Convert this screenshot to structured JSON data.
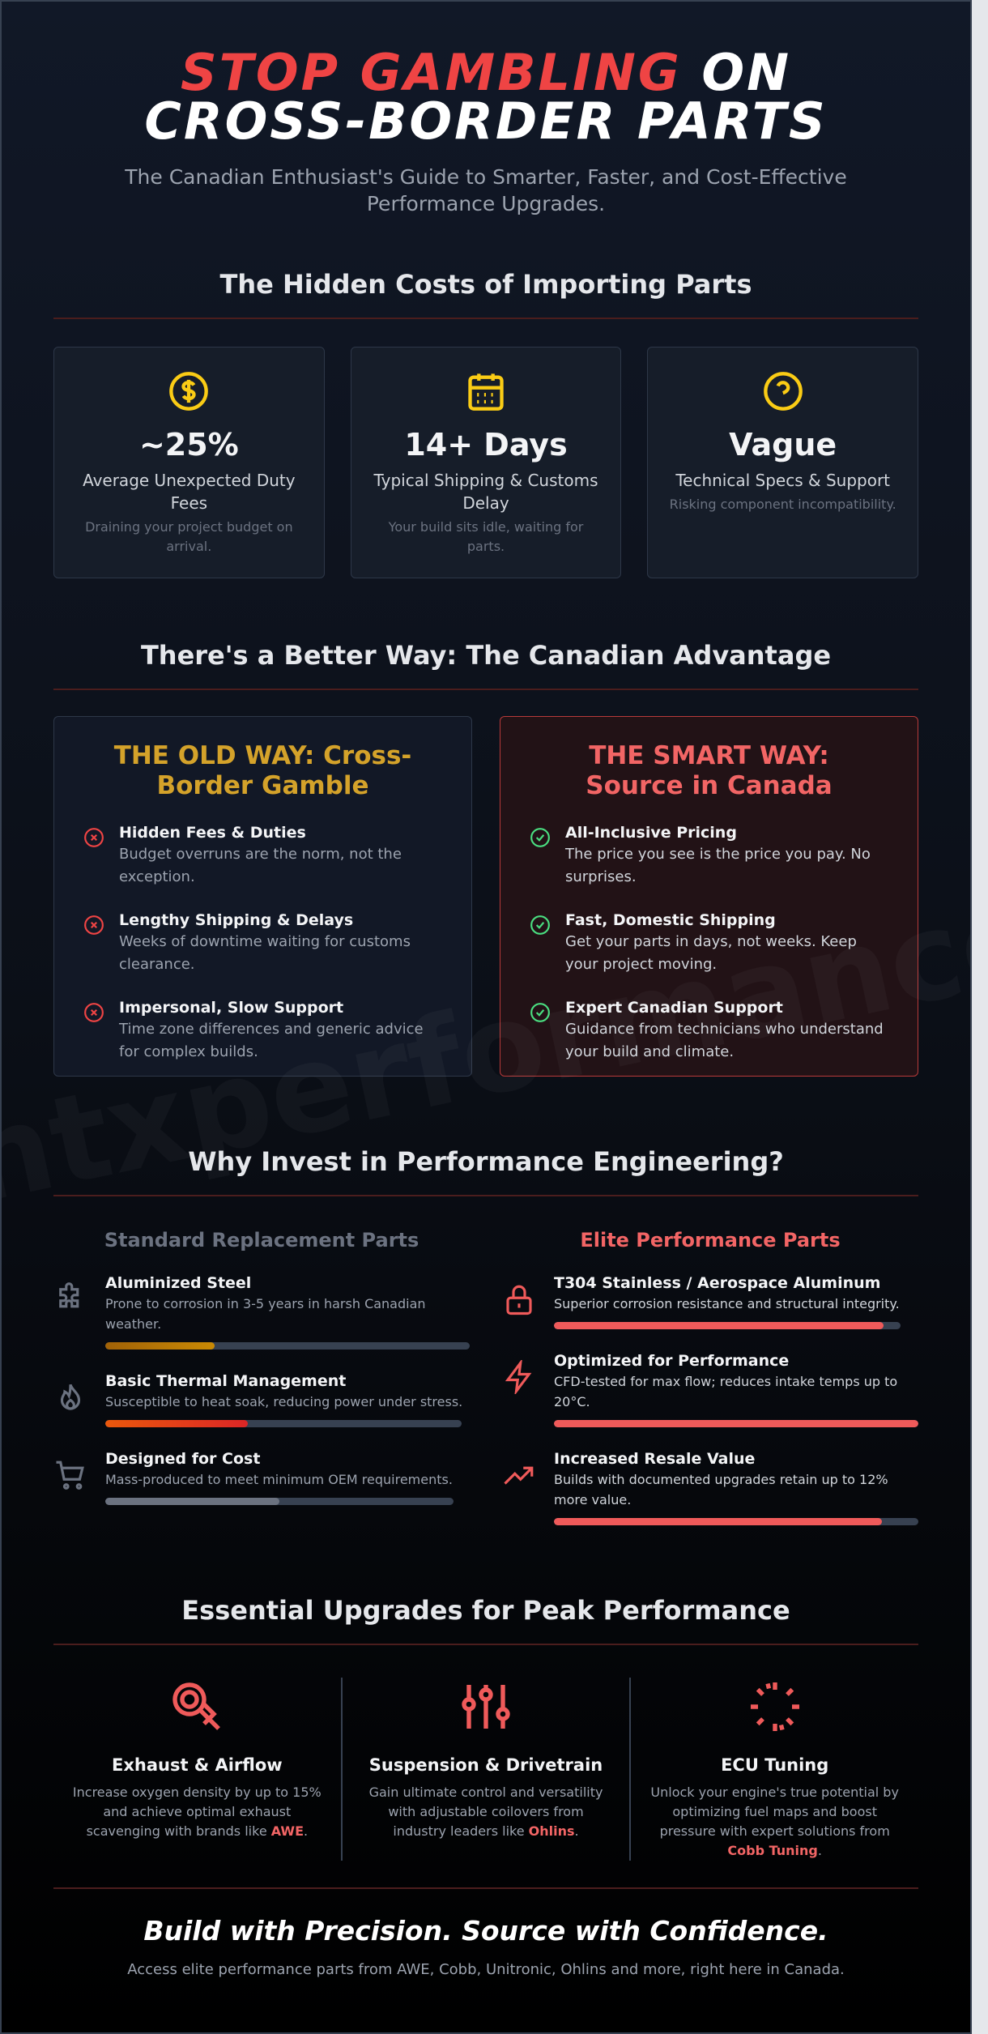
{
  "header": {
    "title_highlight": "STOP GAMBLING",
    "title_rest": "ON CROSS-BORDER PARTS",
    "subtitle": "The Canadian Enthusiast's Guide to Smarter, Faster, and Cost-Effective Performance Upgrades."
  },
  "watermark": "ntxperformance.ca",
  "hidden_costs": {
    "heading": "The Hidden Costs of Importing Parts",
    "cards": [
      {
        "stat": "~25%",
        "label": "Average Unexpected Duty Fees",
        "note": "Draining your project budget on arrival."
      },
      {
        "stat": "14+ Days",
        "label": "Typical Shipping & Customs Delay",
        "note": "Your build sits idle, waiting for parts."
      },
      {
        "stat": "Vague",
        "label": "Technical Specs & Support",
        "note": "Risking component incompatibility."
      }
    ]
  },
  "comparison": {
    "heading": "There's a Better Way: The Canadian Advantage",
    "old_way": {
      "title": "THE OLD WAY: Cross-Border Gamble",
      "items": [
        {
          "title": "Hidden Fees & Duties",
          "text": "Budget overruns are the norm, not the exception."
        },
        {
          "title": "Lengthy Shipping & Delays",
          "text": "Weeks of downtime waiting for customs clearance."
        },
        {
          "title": "Impersonal, Slow Support",
          "text": "Time zone differences and generic advice for complex builds."
        }
      ]
    },
    "smart_way": {
      "title": "THE SMART WAY: Source in Canada",
      "items": [
        {
          "title": "All-Inclusive Pricing",
          "text": "The price you see is the price you pay. No surprises."
        },
        {
          "title": "Fast, Domestic Shipping",
          "text": "Get your parts in days, not weeks. Keep your project moving."
        },
        {
          "title": "Expert Canadian Support",
          "text": "Guidance from technicians who understand your build and climate."
        }
      ]
    }
  },
  "engineering": {
    "heading": "Why Invest in Performance Engineering?",
    "standard": {
      "title": "Standard Replacement Parts",
      "items": [
        {
          "title": "Aluminized Steel",
          "text": "Prone to corrosion in 3-5 years in harsh Canadian weather.",
          "level": 30
        },
        {
          "title": "Basic Thermal Management",
          "text": "Susceptible to heat soak, reducing power under stress.",
          "level": 40
        },
        {
          "title": "Designed for Cost",
          "text": "Mass-produced to meet minimum OEM requirements.",
          "level": 50
        }
      ]
    },
    "elite": {
      "title": "Elite Performance Parts",
      "items": [
        {
          "title": "T304 Stainless / Aerospace Aluminum",
          "text": "Superior corrosion resistance and structural integrity.",
          "level": 95
        },
        {
          "title": "Optimized for Performance",
          "text": "CFD-tested for max flow; reduces intake temps up to 20°C.",
          "level": 100
        },
        {
          "title": "Increased Resale Value",
          "text": "Builds with documented upgrades retain up to 12% more value.",
          "level": 90
        }
      ]
    }
  },
  "upgrades": {
    "heading": "Essential Upgrades for Peak Performance",
    "items": [
      {
        "title": "Exhaust & Airflow",
        "text": "Increase oxygen density by up to 15% and achieve optimal exhaust scavenging with brands like ",
        "brand": "AWE",
        "text_end": "."
      },
      {
        "title": "Suspension & Drivetrain",
        "text": "Gain ultimate control and versatility with adjustable coilovers from industry leaders like ",
        "brand": "Ohlins",
        "text_end": "."
      },
      {
        "title": "ECU Tuning",
        "text": "Unlock your engine's true potential by optimizing fuel maps and boost pressure with expert solutions from ",
        "brand": "Cobb Tuning",
        "text_end": "."
      }
    ]
  },
  "footer": {
    "tagline": "Build with Precision. Source with Confidence.",
    "text": "Access elite performance parts from AWE, Cobb, Unitronic, Ohlins and more, right here in Canada."
  }
}
